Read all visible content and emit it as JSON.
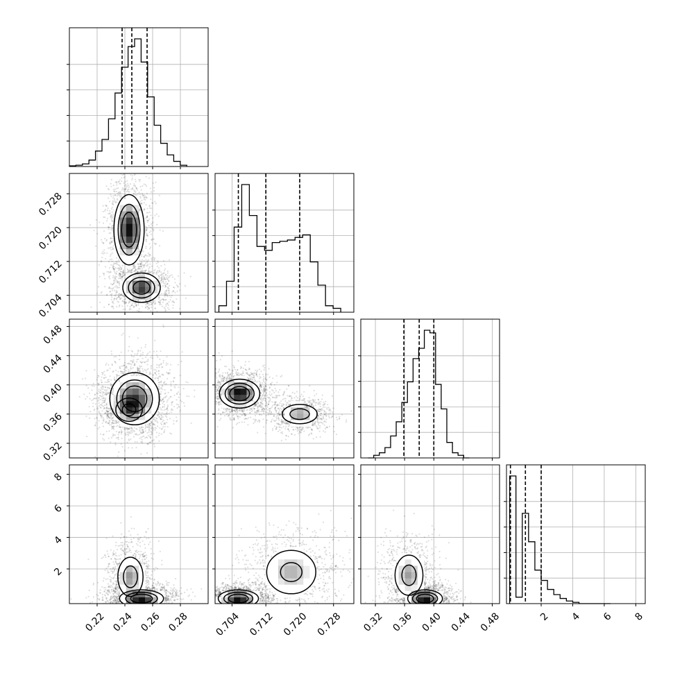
{
  "chart_data": {
    "type": "corner",
    "parameters": [
      {
        "ticks": [
          0.22,
          0.24,
          0.26,
          0.28
        ],
        "tick_labels": [
          "0.22",
          "0.24",
          "0.26",
          "0.28"
        ],
        "range": [
          0.2,
          0.3
        ],
        "quantiles": [
          0.238,
          0.245,
          0.256
        ]
      },
      {
        "ticks": [
          0.704,
          0.712,
          0.72,
          0.728
        ],
        "tick_labels": [
          "0.704",
          "0.712",
          "0.720",
          "0.728"
        ],
        "range": [
          0.7,
          0.7328
        ],
        "quantiles": [
          0.7055,
          0.712,
          0.72
        ]
      },
      {
        "ticks": [
          0.32,
          0.36,
          0.4,
          0.44,
          0.48
        ],
        "tick_labels": [
          "0.32",
          "0.36",
          "0.40",
          "0.44",
          "0.48"
        ],
        "range": [
          0.3,
          0.49
        ],
        "quantiles": [
          0.359,
          0.38,
          0.4
        ]
      },
      {
        "ticks": [
          2,
          4,
          6,
          8
        ],
        "tick_labels": [
          "2",
          "4",
          "6",
          "8"
        ],
        "range": [
          -0.2,
          8.6
        ],
        "quantiles": [
          0.05,
          1.0,
          2.0
        ]
      }
    ],
    "histograms": [
      {
        "param": 0,
        "bins": [
          0.2,
          0.2047,
          0.2094,
          0.2141,
          0.2188,
          0.2235,
          0.2282,
          0.2329,
          0.2376,
          0.2423,
          0.247,
          0.2517,
          0.2564,
          0.2611,
          0.2658,
          0.2705,
          0.2752,
          0.2799,
          0.2846
        ],
        "counts": [
          0.005,
          0.01,
          0.02,
          0.05,
          0.12,
          0.21,
          0.37,
          0.57,
          0.77,
          0.93,
          0.99,
          0.81,
          0.54,
          0.32,
          0.18,
          0.09,
          0.04,
          0.01
        ]
      },
      {
        "param": 1,
        "bins": [
          0.7009,
          0.7027,
          0.7045,
          0.7063,
          0.7081,
          0.7099,
          0.7117,
          0.7135,
          0.7153,
          0.7171,
          0.7189,
          0.7207,
          0.7225,
          0.7243,
          0.7261,
          0.7279,
          0.7297
        ],
        "counts": [
          0.05,
          0.24,
          0.66,
          0.99,
          0.75,
          0.51,
          0.48,
          0.54,
          0.55,
          0.56,
          0.58,
          0.6,
          0.39,
          0.21,
          0.05,
          0.03
        ]
      },
      {
        "param": 2,
        "bins": [
          0.31,
          0.3177,
          0.3254,
          0.3331,
          0.3408,
          0.3485,
          0.3562,
          0.3639,
          0.3716,
          0.3793,
          0.387,
          0.3947,
          0.4024,
          0.4101,
          0.4178,
          0.4255,
          0.4332,
          0.4409,
          0.4486
        ],
        "counts": [
          0.0,
          0.02,
          0.04,
          0.08,
          0.17,
          0.28,
          0.43,
          0.59,
          0.77,
          0.85,
          0.99,
          0.97,
          0.57,
          0.38,
          0.12,
          0.04,
          0.02,
          0.0
        ]
      },
      {
        "param": 3,
        "bins": [
          0.0,
          0.4,
          0.8,
          1.2,
          1.6,
          2.0,
          2.4,
          2.8,
          3.2,
          3.6,
          4.0,
          4.4,
          4.8,
          5.2,
          5.6,
          6.0,
          6.4
        ],
        "counts": [
          0.99,
          0.05,
          0.7,
          0.48,
          0.26,
          0.18,
          0.11,
          0.07,
          0.04,
          0.02,
          0.01,
          0.0,
          0.0,
          0.0,
          0.0,
          0.0
        ]
      }
    ],
    "density_panels": [
      {
        "x": 0,
        "y": 1,
        "modes": [
          {
            "x": 0.243,
            "y": 0.7195,
            "sx": 0.0055,
            "sy": 0.0042,
            "w": 1.0
          },
          {
            "x": 0.252,
            "y": 0.7058,
            "sx": 0.007,
            "sy": 0.0018,
            "w": 0.9
          }
        ]
      },
      {
        "x": 0,
        "y": 2,
        "modes": [
          {
            "x": 0.247,
            "y": 0.381,
            "sx": 0.009,
            "sy": 0.018,
            "w": 1.0
          },
          {
            "x": 0.243,
            "y": 0.366,
            "sx": 0.006,
            "sy": 0.01,
            "w": 0.5
          }
        ]
      },
      {
        "x": 1,
        "y": 2,
        "modes": [
          {
            "x": 0.7058,
            "y": 0.388,
            "sx": 0.0024,
            "sy": 0.01,
            "w": 1.0
          },
          {
            "x": 0.72,
            "y": 0.36,
            "sx": 0.0025,
            "sy": 0.008,
            "w": 0.55
          }
        ]
      },
      {
        "x": 0,
        "y": 3,
        "modes": [
          {
            "x": 0.252,
            "y": 0.12,
            "sx": 0.008,
            "sy": 0.28,
            "w": 1.0
          },
          {
            "x": 0.244,
            "y": 1.5,
            "sx": 0.0055,
            "sy": 0.75,
            "w": 0.55
          }
        ]
      },
      {
        "x": 1,
        "y": 3,
        "modes": [
          {
            "x": 0.7055,
            "y": 0.12,
            "sx": 0.0024,
            "sy": 0.28,
            "w": 1.0
          },
          {
            "x": 0.718,
            "y": 1.8,
            "sx": 0.0038,
            "sy": 0.9,
            "w": 0.45
          }
        ]
      },
      {
        "x": 2,
        "y": 3,
        "modes": [
          {
            "x": 0.388,
            "y": 0.12,
            "sx": 0.012,
            "sy": 0.28,
            "w": 1.0
          },
          {
            "x": 0.366,
            "y": 1.6,
            "sx": 0.012,
            "sy": 0.8,
            "w": 0.5
          }
        ]
      }
    ],
    "grid": true,
    "title": "",
    "xlabel": "",
    "ylabel": ""
  }
}
